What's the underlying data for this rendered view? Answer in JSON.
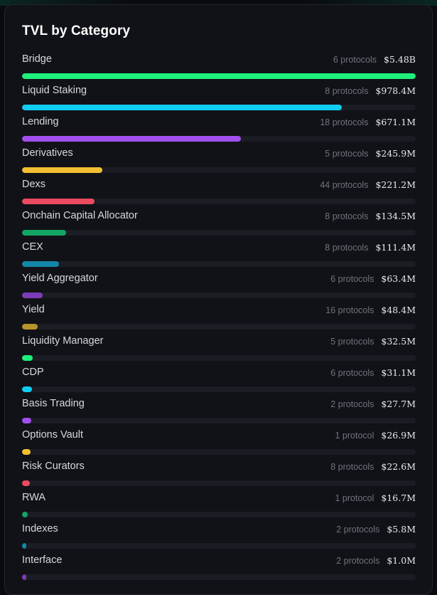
{
  "panel": {
    "title": "TVL by Category"
  },
  "categories": [
    {
      "name": "Bridge",
      "protocols": "6 protocols",
      "tvl": "$5.48B",
      "share": 1.0,
      "color": "#1ff07c"
    },
    {
      "name": "Liquid Staking",
      "protocols": "8 protocols",
      "tvl": "$978.4M",
      "share": 0.812,
      "color": "#10cdf2"
    },
    {
      "name": "Lending",
      "protocols": "18 protocols",
      "tvl": "$671.1M",
      "share": 0.556,
      "color": "#a24ff0"
    },
    {
      "name": "Derivatives",
      "protocols": "5 protocols",
      "tvl": "$245.9M",
      "share": 0.204,
      "color": "#f2bf32"
    },
    {
      "name": "Dexs",
      "protocols": "44 protocols",
      "tvl": "$221.2M",
      "share": 0.184,
      "color": "#ec4a60"
    },
    {
      "name": "Onchain Capital Allocator",
      "protocols": "8 protocols",
      "tvl": "$134.5M",
      "share": 0.112,
      "color": "#13a564"
    },
    {
      "name": "CEX",
      "protocols": "8 protocols",
      "tvl": "$111.4M",
      "share": 0.093,
      "color": "#1387a8"
    },
    {
      "name": "Yield Aggregator",
      "protocols": "6 protocols",
      "tvl": "$63.4M",
      "share": 0.053,
      "color": "#7d3cb8"
    },
    {
      "name": "Yield",
      "protocols": "16 protocols",
      "tvl": "$48.4M",
      "share": 0.04,
      "color": "#b8922c"
    },
    {
      "name": "Liquidity Manager",
      "protocols": "5 protocols",
      "tvl": "$32.5M",
      "share": 0.027,
      "color": "#1ff07c"
    },
    {
      "name": "CDP",
      "protocols": "6 protocols",
      "tvl": "$31.1M",
      "share": 0.026,
      "color": "#10cdf2"
    },
    {
      "name": "Basis Trading",
      "protocols": "2 protocols",
      "tvl": "$27.7M",
      "share": 0.023,
      "color": "#a24ff0"
    },
    {
      "name": "Options Vault",
      "protocols": "1 protocol",
      "tvl": "$26.9M",
      "share": 0.022,
      "color": "#f2bf32"
    },
    {
      "name": "Risk Curators",
      "protocols": "8 protocols",
      "tvl": "$22.6M",
      "share": 0.019,
      "color": "#ec4a60"
    },
    {
      "name": "RWA",
      "protocols": "1 protocol",
      "tvl": "$16.7M",
      "share": 0.014,
      "color": "#13a564"
    },
    {
      "name": "Indexes",
      "protocols": "2 protocols",
      "tvl": "$5.8M",
      "share": 0.011,
      "color": "#1387a8"
    },
    {
      "name": "Interface",
      "protocols": "2 protocols",
      "tvl": "$1.0M",
      "share": 0.011,
      "color": "#7d3cb8"
    }
  ]
}
